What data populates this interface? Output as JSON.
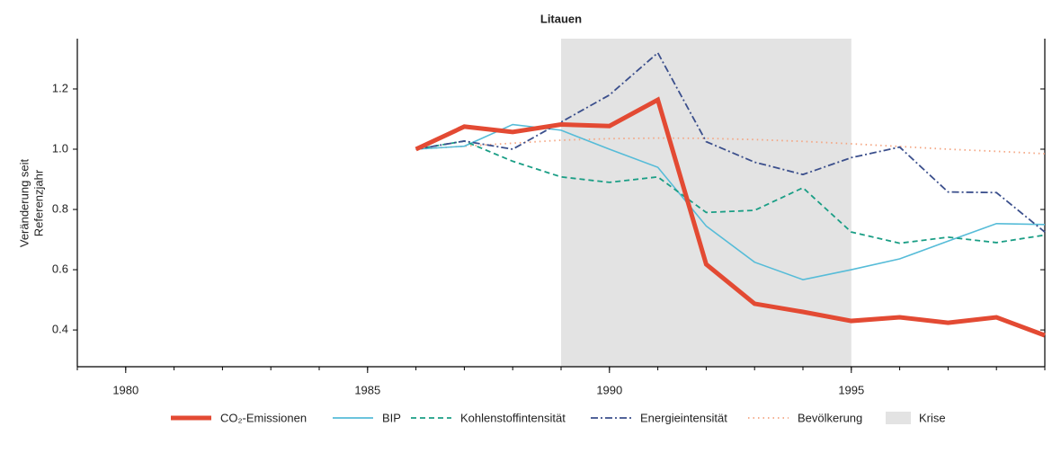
{
  "chart_data": {
    "type": "line",
    "title": "Litauen",
    "ylabel": [
      "Veränderung seit",
      "Referenzjahr"
    ],
    "x": [
      1986,
      1987,
      1988,
      1989,
      1990,
      1991,
      1992,
      1993,
      1994,
      1995,
      1996,
      1997,
      1998,
      1999
    ],
    "xlim": [
      1979,
      1999
    ],
    "xticks": [
      1980,
      1985,
      1990,
      1995
    ],
    "x_minor_ticks": [
      1979,
      1980,
      1981,
      1982,
      1983,
      1984,
      1985,
      1986,
      1987,
      1988,
      1989,
      1990,
      1991,
      1992,
      1993,
      1994,
      1995,
      1996,
      1997,
      1998,
      1999
    ],
    "ylim": [
      0.278,
      1.367
    ],
    "yticks": [
      0.4,
      0.6,
      0.8,
      1.0,
      1.2
    ],
    "series": [
      {
        "name": "CO₂-Emissionen",
        "color": "#e34a33",
        "width": 5,
        "dash": "none",
        "values": [
          1.0,
          1.075,
          1.057,
          1.082,
          1.077,
          1.164,
          0.618,
          0.487,
          0.46,
          0.43,
          0.442,
          0.424,
          0.442,
          0.382
        ]
      },
      {
        "name": "BIP",
        "color": "#56bcd8",
        "width": 1.6,
        "dash": "none",
        "values": [
          1.0,
          1.01,
          1.082,
          1.063,
          1.0,
          0.94,
          0.745,
          0.625,
          0.567,
          0.6,
          0.636,
          0.695,
          0.753,
          0.75
        ]
      },
      {
        "name": "Kohlenstoffintensität",
        "color": "#1a9e85",
        "width": 1.8,
        "dash": "6 4",
        "values": [
          1.0,
          1.027,
          0.96,
          0.908,
          0.89,
          0.908,
          0.79,
          0.797,
          0.872,
          0.725,
          0.688,
          0.708,
          0.69,
          0.715
        ]
      },
      {
        "name": "Energieintensität",
        "color": "#3b4f8c",
        "width": 1.8,
        "dash": "8 3 2 3",
        "values": [
          1.0,
          1.027,
          1.0,
          1.09,
          1.18,
          1.32,
          1.025,
          0.957,
          0.916,
          0.972,
          1.007,
          0.858,
          0.856,
          0.725
        ]
      },
      {
        "name": "Bevölkerung",
        "color": "#f4a582",
        "width": 1.8,
        "dash": "1.5 4",
        "values": [
          1.0,
          1.01,
          1.02,
          1.03,
          1.035,
          1.037,
          1.036,
          1.032,
          1.026,
          1.018,
          1.009,
          1.0,
          0.993,
          0.985
        ]
      }
    ],
    "shading": {
      "name": "Krise",
      "color": "#e3e3e3",
      "x": [
        1989,
        1995
      ]
    }
  }
}
